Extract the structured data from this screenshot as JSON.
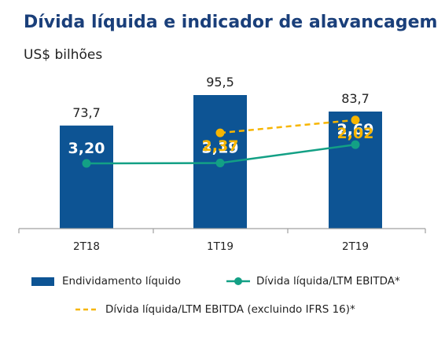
{
  "chart_data": {
    "type": "bar",
    "title": "Dívida líquida e indicador de alavancagem",
    "subtitle": "US$ bilhões",
    "categories": [
      "2T18",
      "1T19",
      "2T19"
    ],
    "bar_series": {
      "name": "Endividamento líquido",
      "values": [
        73.7,
        95.5,
        83.7
      ],
      "labels": [
        "73,7",
        "95,5",
        "83,7"
      ],
      "color": "#0d5494"
    },
    "line_series": [
      {
        "name": "Dívida líquida/LTM EBITDA*",
        "values": [
          3.2,
          3.19,
          2.69
        ],
        "labels": [
          "3,20",
          "3,19",
          "2,69"
        ],
        "color": "#13a085",
        "style": "solid"
      },
      {
        "name": "Dívida líquida/LTM EBITDA (excluindo IFRS 16)*",
        "values": [
          null,
          2.37,
          2.02
        ],
        "labels": [
          "",
          "2,37",
          "2,02"
        ],
        "color": "#f7b500",
        "style": "dashed"
      }
    ],
    "legend_position": "bottom",
    "grid": false
  }
}
